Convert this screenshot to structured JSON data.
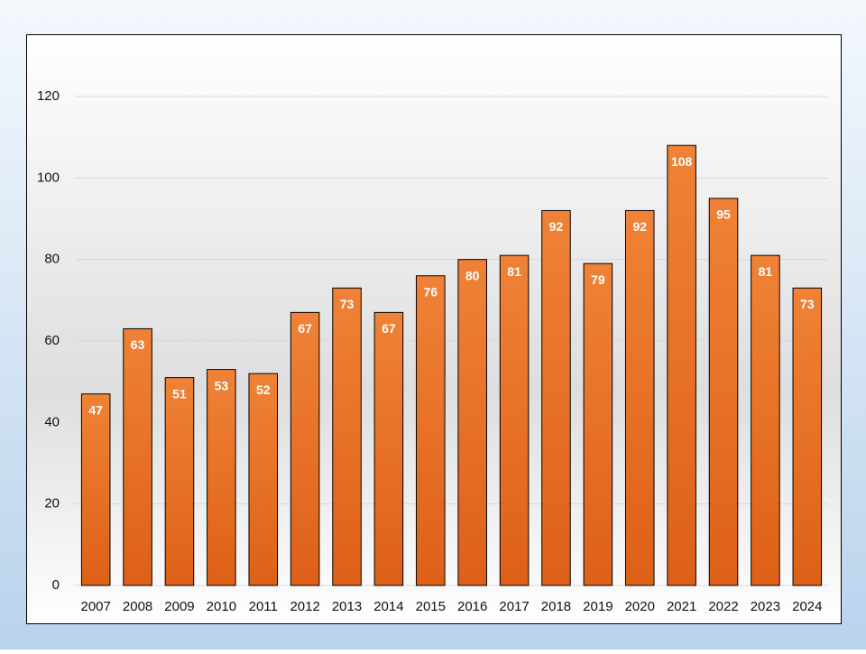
{
  "chart_data": {
    "type": "bar",
    "categories": [
      "2007",
      "2008",
      "2009",
      "2010",
      "2011",
      "2012",
      "2013",
      "2014",
      "2015",
      "2016",
      "2017",
      "2018",
      "2019",
      "2020",
      "2021",
      "2022",
      "2023",
      "2024"
    ],
    "values": [
      47,
      63,
      51,
      53,
      52,
      67,
      73,
      67,
      76,
      80,
      81,
      92,
      79,
      92,
      108,
      95,
      81,
      73
    ],
    "color": "#e8732a",
    "ylim": [
      0,
      120
    ],
    "yticks": [
      0,
      20,
      40,
      60,
      80,
      100,
      120
    ],
    "grid": true,
    "data_labels": true
  }
}
